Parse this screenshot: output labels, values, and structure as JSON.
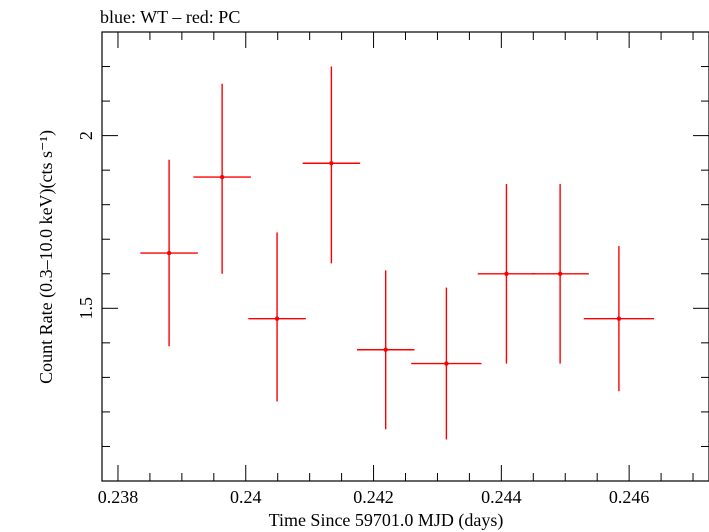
{
  "chart_data": {
    "type": "scatter",
    "title": "blue: WT – red: PC",
    "xlabel": "Time Since 59701.0 MJD (days)",
    "ylabel": "Count Rate (0.3–10.0 keV)(cts s⁻¹)",
    "xlim": [
      0.23775,
      0.24725
    ],
    "ylim": [
      1.0,
      2.3
    ],
    "x_ticks": [
      0.238,
      0.24,
      0.242,
      0.244,
      0.246
    ],
    "x_tick_labels": [
      "0.238",
      "0.24",
      "0.242",
      "0.244",
      "0.246"
    ],
    "y_ticks": [
      1.5,
      2.0
    ],
    "y_tick_labels": [
      "1.5",
      "2"
    ],
    "grid": false,
    "series": [
      {
        "color": "#ff0000",
        "points": [
          {
            "x": 0.2388,
            "y": 1.66,
            "xerr": 0.00045,
            "yerr_low": 0.27,
            "yerr_high": 0.27
          },
          {
            "x": 0.23963,
            "y": 1.88,
            "xerr": 0.00045,
            "yerr_low": 0.28,
            "yerr_high": 0.27
          },
          {
            "x": 0.24049,
            "y": 1.47,
            "xerr": 0.00045,
            "yerr_low": 0.24,
            "yerr_high": 0.25
          },
          {
            "x": 0.24134,
            "y": 1.92,
            "xerr": 0.00045,
            "yerr_low": 0.29,
            "yerr_high": 0.28
          },
          {
            "x": 0.24219,
            "y": 1.38,
            "xerr": 0.00045,
            "yerr_low": 0.23,
            "yerr_high": 0.23
          },
          {
            "x": 0.24314,
            "y": 1.34,
            "xerr": 0.00055,
            "yerr_low": 0.22,
            "yerr_high": 0.22
          },
          {
            "x": 0.24408,
            "y": 1.6,
            "xerr": 0.00045,
            "yerr_low": 0.26,
            "yerr_high": 0.26
          },
          {
            "x": 0.24492,
            "y": 1.6,
            "xerr": 0.00045,
            "yerr_low": 0.26,
            "yerr_high": 0.26
          },
          {
            "x": 0.24584,
            "y": 1.47,
            "xerr": 0.00055,
            "yerr_low": 0.21,
            "yerr_high": 0.21
          }
        ]
      }
    ]
  }
}
